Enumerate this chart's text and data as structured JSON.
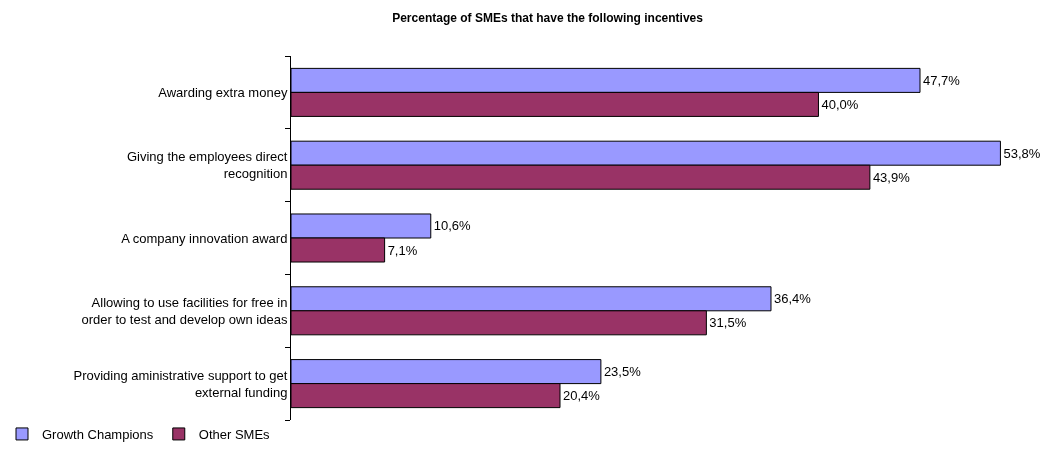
{
  "chart_data": {
    "type": "bar",
    "orientation": "horizontal",
    "title": "Percentage of SMEs that have the following incentives",
    "categories": [
      "Awarding extra money",
      "Giving the employees direct\nrecognition",
      "A company innovation award",
      "Allowing to use facilities for free in\norder to test and develop own ideas",
      "Providing aministrative support to get\nexternal funding"
    ],
    "series": [
      {
        "name": "Growth Champions",
        "color": "#9999ff",
        "values": [
          47.7,
          53.8,
          10.6,
          36.4,
          23.5
        ],
        "value_labels": [
          "47,7%",
          "53,8%",
          "10,6%",
          "36,4%",
          "23,5%"
        ]
      },
      {
        "name": "Other SMEs",
        "color": "#993366",
        "values": [
          40.0,
          43.9,
          7.1,
          31.5,
          20.4
        ],
        "value_labels": [
          "40,0%",
          "43,9%",
          "7,1%",
          "31,5%",
          "20,4%"
        ]
      }
    ],
    "legend": "bottom left",
    "tick_labels": "y"
  }
}
